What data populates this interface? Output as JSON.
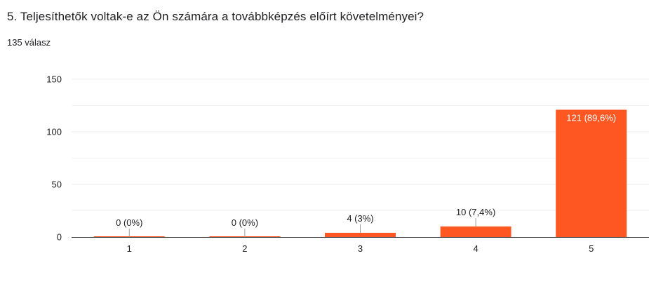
{
  "question": {
    "title": "5. Teljesíthetők voltak-e az Ön számára a továbbképzés előírt követelményei?",
    "response_count": "135 válasz"
  },
  "colors": {
    "bar": "#ff5722",
    "gridline": "#ececec",
    "axis": "#333333",
    "label": "#202124",
    "inside_label": "#ffffff",
    "leader": "#9e9e9e"
  },
  "chart_data": {
    "type": "bar",
    "categories": [
      "1",
      "2",
      "3",
      "4",
      "5"
    ],
    "values": [
      0,
      0,
      4,
      10,
      121
    ],
    "data_labels": [
      "0 (0%)",
      "0 (0%)",
      "4 (3%)",
      "10 (7,4%)",
      "121 (89,6%)"
    ],
    "ylim": [
      0,
      150
    ],
    "yticks": [
      0,
      50,
      100,
      150
    ],
    "grid": true,
    "title": "",
    "xlabel": "",
    "ylabel": ""
  }
}
